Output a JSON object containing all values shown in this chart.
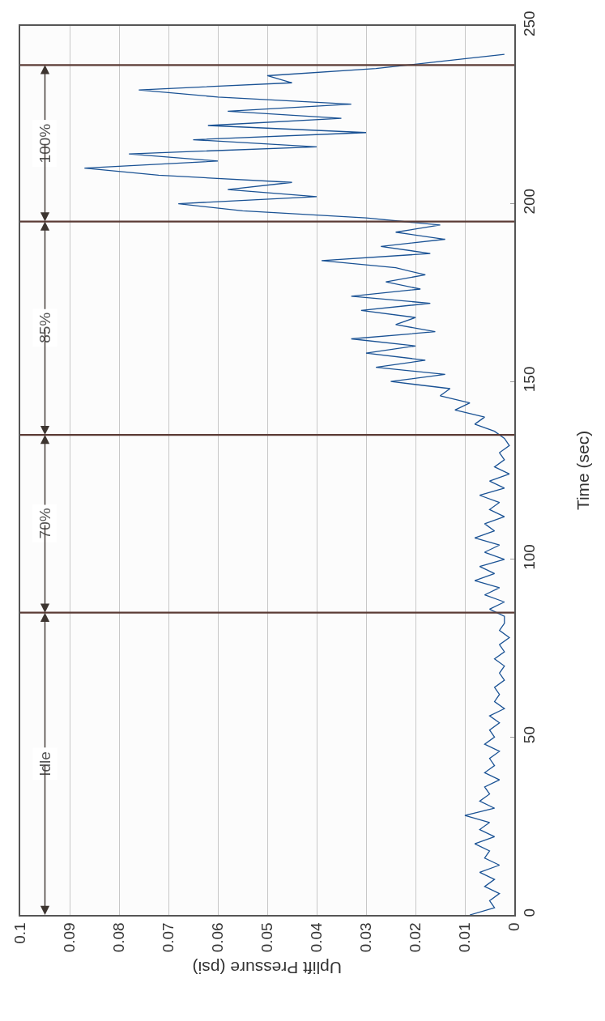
{
  "chart_data": {
    "type": "line",
    "xlabel": "Uplift Pressure (psi)",
    "ylabel": "Time (sec)",
    "series": [
      {
        "color": "#1a5294",
        "x": [
          0.009,
          0.004,
          0.005,
          0.003,
          0.006,
          0.004,
          0.007,
          0.003,
          0.006,
          0.005,
          0.008,
          0.004,
          0.007,
          0.005,
          0.01,
          0.004,
          0.007,
          0.005,
          0.006,
          0.003,
          0.006,
          0.004,
          0.005,
          0.003,
          0.006,
          0.004,
          0.005,
          0.003,
          0.005,
          0.002,
          0.004,
          0.003,
          0.004,
          0.002,
          0.003,
          0.002,
          0.004,
          0.002,
          0.003,
          0.001,
          0.003,
          0.002,
          0.002,
          0.005,
          0.002,
          0.006,
          0.003,
          0.008,
          0.004,
          0.007,
          0.002,
          0.006,
          0.003,
          0.008,
          0.004,
          0.006,
          0.002,
          0.005,
          0.003,
          0.007,
          0.002,
          0.005,
          0.001,
          0.004,
          0.002,
          0.003,
          0.001,
          0.002,
          0.004,
          0.008,
          0.006,
          0.012,
          0.009,
          0.015,
          0.013,
          0.025,
          0.014,
          0.028,
          0.018,
          0.03,
          0.02,
          0.033,
          0.016,
          0.024,
          0.02,
          0.031,
          0.017,
          0.033,
          0.019,
          0.026,
          0.018,
          0.024,
          0.039,
          0.017,
          0.027,
          0.014,
          0.024,
          0.015,
          0.03,
          0.055,
          0.068,
          0.04,
          0.058,
          0.045,
          0.072,
          0.087,
          0.06,
          0.078,
          0.04,
          0.065,
          0.03,
          0.062,
          0.035,
          0.058,
          0.033,
          0.06,
          0.076,
          0.045,
          0.05,
          0.028,
          0.015,
          0.002
        ],
        "values": [
          0,
          2,
          4,
          6,
          8,
          10,
          12,
          14,
          16,
          18,
          20,
          22,
          24,
          26,
          28,
          30,
          32,
          34,
          36,
          38,
          40,
          42,
          44,
          46,
          48,
          50,
          52,
          54,
          56,
          58,
          60,
          62,
          64,
          66,
          68,
          70,
          72,
          74,
          76,
          78,
          80,
          82,
          84,
          86,
          88,
          90,
          92,
          94,
          96,
          98,
          100,
          102,
          104,
          106,
          108,
          110,
          112,
          114,
          116,
          118,
          120,
          122,
          124,
          126,
          128,
          130,
          132,
          134,
          136,
          138,
          140,
          142,
          144,
          146,
          148,
          150,
          152,
          154,
          156,
          158,
          160,
          162,
          164,
          166,
          168,
          170,
          172,
          174,
          176,
          178,
          180,
          182,
          184,
          186,
          188,
          190,
          192,
          194,
          196,
          198,
          200,
          202,
          204,
          206,
          208,
          210,
          212,
          214,
          216,
          218,
          220,
          222,
          224,
          226,
          228,
          230,
          232,
          234,
          236,
          238,
          240,
          242
        ]
      }
    ],
    "xlim": [
      0.1,
      0
    ],
    "xticks": [
      0.1,
      0.09,
      0.08,
      0.07,
      0.06,
      0.05,
      0.04,
      0.03,
      0.02,
      0.01,
      0
    ],
    "ylim": [
      0,
      250
    ],
    "yticks": [
      0,
      50,
      100,
      150,
      200,
      250
    ],
    "grid": "x",
    "line_style": "solid",
    "ref_lines": [
      {
        "axis": "y",
        "value": 85,
        "color": "#5b3b35"
      },
      {
        "axis": "y",
        "value": 135,
        "color": "#5b3b35"
      },
      {
        "axis": "y",
        "value": 195,
        "color": "#5b3b35"
      },
      {
        "axis": "y",
        "value": 239,
        "color": "#5b3b35"
      }
    ],
    "annotations": [
      {
        "text": "Idle",
        "y": 85
      },
      {
        "text": "70%",
        "y": 135
      },
      {
        "text": "85%",
        "y": 195
      },
      {
        "text": "100%",
        "y": 239
      }
    ]
  }
}
